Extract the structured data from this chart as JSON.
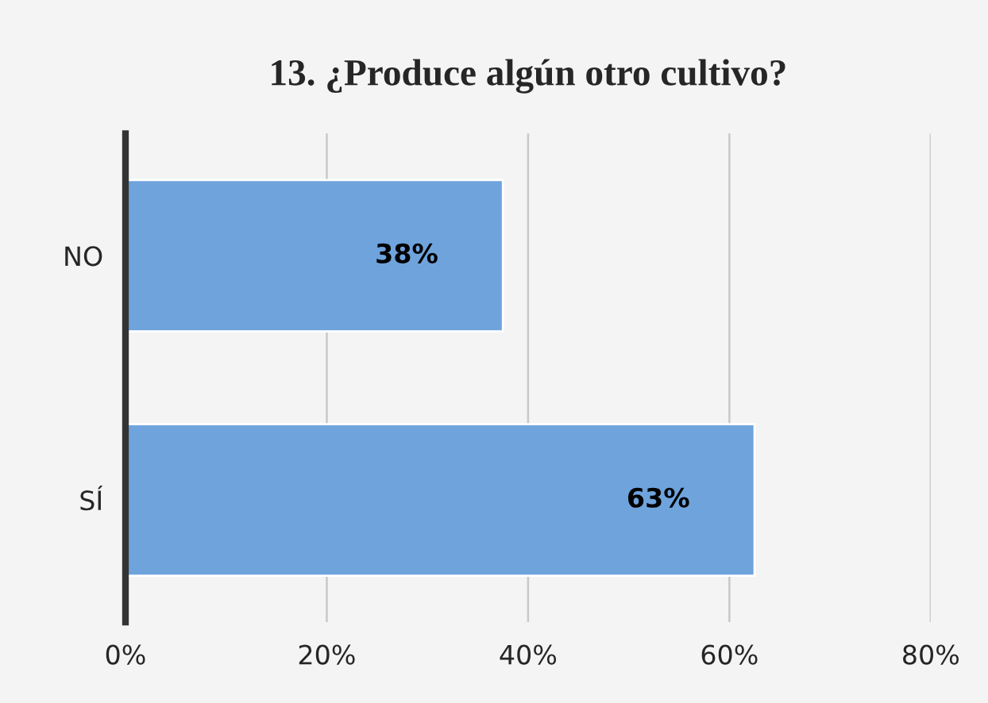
{
  "chart_data": {
    "type": "bar",
    "orientation": "horizontal",
    "title": "13. ¿Produce algún otro cultivo?",
    "categories": [
      "NO",
      "SÍ"
    ],
    "values": [
      37.5,
      62.5
    ],
    "value_labels": [
      "38%",
      "63%"
    ],
    "color": "#6fa3dc",
    "xlim": [
      0,
      80
    ],
    "xticks": [
      {
        "value": 0,
        "label": "0%"
      },
      {
        "value": 20,
        "label": "20%"
      },
      {
        "value": 40,
        "label": "40%"
      },
      {
        "value": 60,
        "label": "60%"
      },
      {
        "value": 80,
        "label": "80%"
      }
    ],
    "grid": "x"
  }
}
